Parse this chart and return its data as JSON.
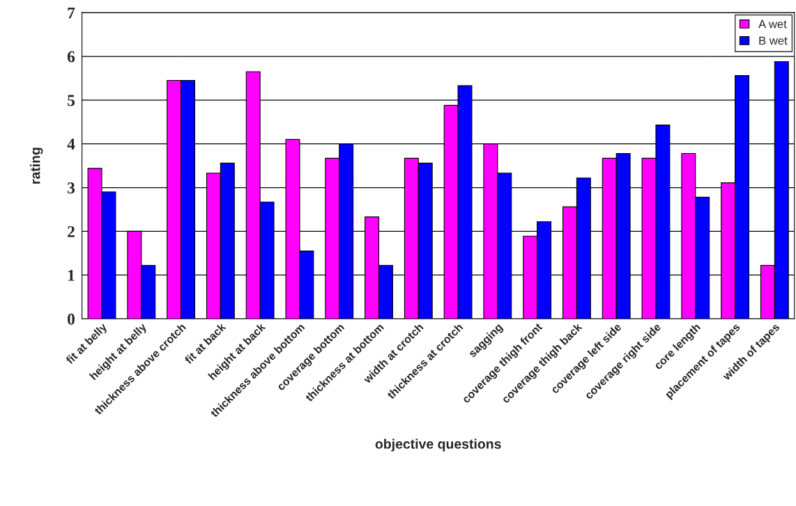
{
  "chart_data": {
    "type": "bar",
    "xlabel": "objective questions",
    "ylabel": "rating",
    "categories": [
      "fit at belly",
      "height at belly",
      "thickness above crotch",
      "fit at back",
      "height at back",
      "thickness above bottom",
      "coverage bottom",
      "thickness at bottom",
      "width at crotch",
      "thickness at crotch",
      "sagging",
      "coverage thigh front",
      "coverage thigh back",
      "coverage left side",
      "coverage right side",
      "core length",
      "placement of tapes",
      "width of tapes"
    ],
    "series": [
      {
        "name": "A wet",
        "color": "#ff00ff",
        "values": [
          3.44,
          2.0,
          5.45,
          3.33,
          5.65,
          4.1,
          3.67,
          2.33,
          3.67,
          4.88,
          4.0,
          1.89,
          2.56,
          3.67,
          3.67,
          3.78,
          3.11,
          1.22
        ]
      },
      {
        "name": "B wet",
        "color": "#0000ff",
        "values": [
          2.9,
          1.22,
          5.45,
          3.56,
          2.67,
          1.55,
          4.0,
          1.22,
          3.56,
          5.33,
          3.33,
          2.22,
          3.22,
          3.78,
          4.43,
          2.78,
          5.56,
          5.88
        ]
      }
    ],
    "ylim": [
      0,
      7
    ],
    "yticks": [
      0,
      1,
      2,
      3,
      4,
      5,
      6,
      7
    ],
    "grid": "y",
    "legend": "top right"
  }
}
